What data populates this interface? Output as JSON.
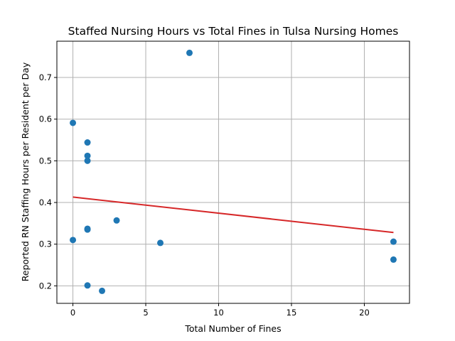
{
  "chart_data": {
    "type": "scatter",
    "title": "Staffed Nursing Hours vs Total Fines in Tulsa Nursing Homes",
    "xlabel": "Total Number of Fines",
    "ylabel": "Reported RN Staffing Hours per Resident per Day",
    "xlim": [
      -1.1,
      23.1
    ],
    "ylim": [
      0.158,
      0.787
    ],
    "xticks": [
      0,
      5,
      10,
      15,
      20
    ],
    "yticks": [
      0.2,
      0.3,
      0.4,
      0.5,
      0.6,
      0.7
    ],
    "ytick_labels": [
      "0.2",
      "0.3",
      "0.4",
      "0.5",
      "0.6",
      "0.7"
    ],
    "grid": true,
    "series": [
      {
        "type": "scatter",
        "color": "#1f77b4",
        "points": [
          {
            "x": 0,
            "y": 0.591
          },
          {
            "x": 0,
            "y": 0.31
          },
          {
            "x": 1,
            "y": 0.544
          },
          {
            "x": 1,
            "y": 0.512
          },
          {
            "x": 1,
            "y": 0.5
          },
          {
            "x": 1,
            "y": 0.337
          },
          {
            "x": 1,
            "y": 0.335
          },
          {
            "x": 1,
            "y": 0.201
          },
          {
            "x": 2,
            "y": 0.188
          },
          {
            "x": 3,
            "y": 0.357
          },
          {
            "x": 6,
            "y": 0.303
          },
          {
            "x": 8,
            "y": 0.759
          },
          {
            "x": 22,
            "y": 0.306
          },
          {
            "x": 22,
            "y": 0.263
          }
        ]
      },
      {
        "type": "trend_line",
        "color": "#d62728",
        "points": [
          {
            "x": 0,
            "y": 0.413
          },
          {
            "x": 22,
            "y": 0.328
          }
        ]
      }
    ]
  }
}
